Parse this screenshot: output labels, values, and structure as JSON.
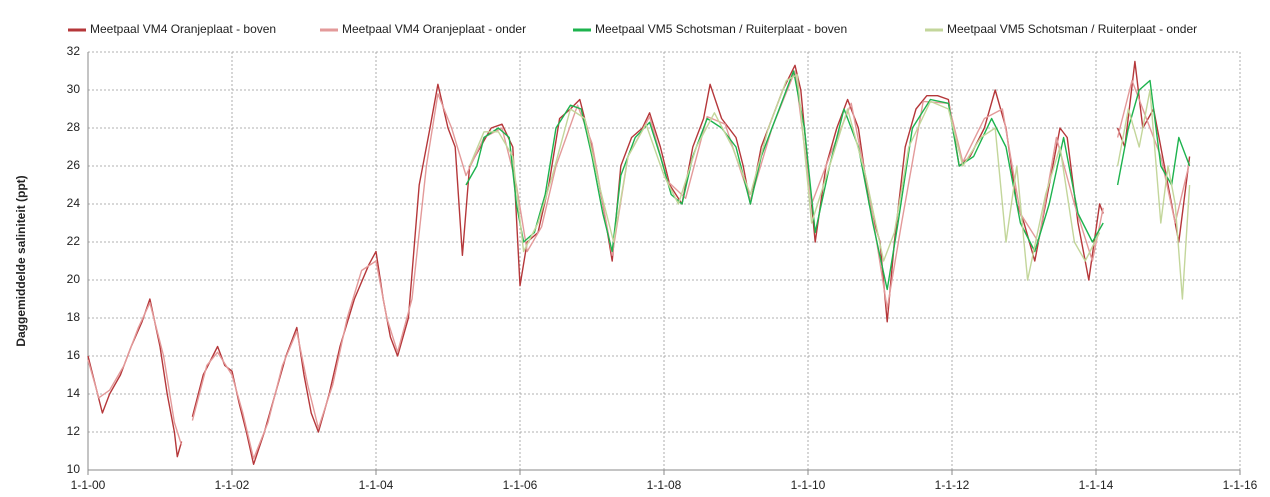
{
  "chart_data": {
    "type": "line",
    "y_label": "Daggemiddelde saliniteit (ppt)",
    "xlim": [
      2000,
      2016
    ],
    "xticks": [
      {
        "value": 2000,
        "label": "1-1-00"
      },
      {
        "value": 2002,
        "label": "1-1-02"
      },
      {
        "value": 2004,
        "label": "1-1-04"
      },
      {
        "value": 2006,
        "label": "1-1-06"
      },
      {
        "value": 2008,
        "label": "1-1-08"
      },
      {
        "value": 2010,
        "label": "1-1-10"
      },
      {
        "value": 2012,
        "label": "1-1-12"
      },
      {
        "value": 2014,
        "label": "1-1-14"
      },
      {
        "value": 2016,
        "label": "1-1-16"
      }
    ],
    "ylim": [
      10,
      32
    ],
    "yticks": [
      10,
      12,
      14,
      16,
      18,
      20,
      22,
      24,
      26,
      28,
      30,
      32
    ],
    "grid": true,
    "legend": "top",
    "series": [
      {
        "name": "Meetpaal VM4 Oranjeplaat - boven",
        "color": "#b5373a",
        "x": [
          2000.0,
          2000.1,
          2000.2,
          2000.3,
          2000.45,
          2000.6,
          2000.75,
          2000.86,
          2001.0,
          2001.1,
          2001.2,
          2001.24,
          2001.3,
          2001.33,
          2001.45,
          2001.6,
          2001.8,
          2001.9,
          2002.0,
          2002.1,
          2002.2,
          2002.3,
          2002.45,
          2002.6,
          2002.75,
          2002.9,
          2003.0,
          2003.1,
          2003.2,
          2003.35,
          2003.5,
          2003.7,
          2003.9,
          2004.0,
          2004.1,
          2004.2,
          2004.3,
          2004.45,
          2004.6,
          2004.75,
          2004.86,
          2005.0,
          2005.1,
          2005.2,
          2005.3,
          2005.45,
          2005.6,
          2005.75,
          2005.9,
          2006.0,
          2006.1,
          2006.25,
          2006.4,
          2006.55,
          2006.7,
          2006.83,
          2007.0,
          2007.15,
          2007.28,
          2007.4,
          2007.55,
          2007.7,
          2007.8,
          2007.95,
          2008.08,
          2008.25,
          2008.4,
          2008.55,
          2008.64,
          2008.8,
          2009.0,
          2009.1,
          2009.2,
          2009.35,
          2009.5,
          2009.65,
          2009.82,
          2009.9,
          2010.0,
          2010.1,
          2010.25,
          2010.4,
          2010.55,
          2010.7,
          2010.85,
          2011.0,
          2011.1,
          2011.2,
          2011.35,
          2011.5,
          2011.65,
          2011.8,
          2011.95,
          2012.1,
          2012.25,
          2012.45,
          2012.6,
          2012.75,
          2012.9,
          2013.0,
          2013.15,
          2013.3,
          2013.5,
          2013.6,
          2013.75,
          2013.9,
          2014.05,
          2014.1,
          2014.12,
          2014.3,
          2014.4,
          2014.54,
          2014.65,
          2014.8,
          2014.95,
          2015.05,
          2015.15,
          2015.3
        ],
        "values": [
          16,
          14.5,
          13,
          14,
          15,
          16.5,
          17.8,
          19,
          16.5,
          14,
          12,
          10.7,
          11.5,
          null,
          12.8,
          15,
          16.5,
          15.5,
          15.2,
          13.5,
          12,
          10.3,
          12,
          14,
          16,
          17.5,
          15,
          13,
          12,
          14,
          16.5,
          19,
          20.8,
          21.5,
          19,
          17,
          16,
          18,
          25,
          28,
          30.3,
          28,
          27,
          21.3,
          26,
          27,
          28,
          28.2,
          27,
          19.7,
          22,
          22.5,
          25,
          28.5,
          29,
          29.5,
          27,
          24,
          21,
          26,
          27.5,
          28,
          28.8,
          27,
          25,
          24,
          27,
          28.5,
          30.3,
          28.5,
          27.5,
          26,
          24,
          27,
          28.5,
          30,
          31.3,
          30,
          26,
          22,
          26,
          28,
          29.5,
          28,
          24,
          22,
          17.8,
          22,
          27,
          29,
          29.7,
          29.7,
          29.5,
          26,
          26.5,
          28,
          30,
          28,
          24,
          23,
          21,
          24,
          28,
          27.5,
          23,
          20,
          24,
          23.5,
          null,
          28,
          27,
          31.5,
          28,
          29,
          26,
          24,
          22,
          26.5
        ]
      },
      {
        "name": "Meetpaal VM4 Oranjeplaat - onder",
        "color": "#e39a9a",
        "x": [
          2000.0,
          2000.15,
          2000.3,
          2000.5,
          2000.7,
          2000.86,
          2001.05,
          2001.2,
          2001.3,
          2001.33,
          2001.45,
          2001.65,
          2001.8,
          2002.0,
          2002.15,
          2002.3,
          2002.5,
          2002.7,
          2002.9,
          2003.05,
          2003.2,
          2003.4,
          2003.6,
          2003.8,
          2004.0,
          2004.15,
          2004.3,
          2004.5,
          2004.7,
          2004.86,
          2005.05,
          2005.25,
          2005.5,
          2005.75,
          2005.95,
          2006.1,
          2006.3,
          2006.5,
          2006.8,
          2007.0,
          2007.28,
          2007.5,
          2007.8,
          2008.05,
          2008.3,
          2008.6,
          2008.85,
          2009.2,
          2009.5,
          2009.82,
          2010.05,
          2010.3,
          2010.6,
          2010.85,
          2011.1,
          2011.3,
          2011.6,
          2011.95,
          2012.15,
          2012.45,
          2012.7,
          2012.95,
          2013.2,
          2013.45,
          2013.7,
          2013.95,
          2014.1,
          2014.12,
          2014.3,
          2014.5,
          2014.7,
          2014.9,
          2015.1,
          2015.3
        ],
        "values": [
          15.8,
          13.8,
          14.2,
          15.5,
          17.5,
          18.8,
          16,
          12.5,
          11.3,
          null,
          12.6,
          15.5,
          16.2,
          15,
          13,
          10.6,
          12.5,
          15.5,
          17.3,
          14.5,
          12.2,
          14.5,
          18,
          20.5,
          21,
          18,
          16.2,
          19,
          26,
          29.8,
          28,
          25.5,
          27.5,
          28,
          25,
          21.5,
          22.8,
          26,
          29.2,
          27.2,
          21.3,
          26.5,
          28.6,
          25.2,
          24.3,
          28.6,
          28.2,
          24.2,
          28,
          31,
          24,
          26.5,
          29.3,
          24.5,
          18.5,
          23,
          29.4,
          29.3,
          26.2,
          28.5,
          29,
          23.5,
          22,
          27.5,
          24,
          21,
          23.8,
          null,
          27.5,
          30.5,
          28.5,
          26.5,
          23,
          26.2
        ]
      },
      {
        "name": "Meetpaal VM5 Schotsman / Ruiterplaat - boven",
        "color": "#1db34e",
        "x": [
          2005.25,
          2005.4,
          2005.5,
          2005.7,
          2005.85,
          2005.95,
          2006.05,
          2006.2,
          2006.35,
          2006.5,
          2006.7,
          2006.85,
          2007.0,
          2007.15,
          2007.28,
          2007.4,
          2007.6,
          2007.8,
          2007.95,
          2008.1,
          2008.25,
          2008.4,
          2008.6,
          2008.8,
          2009.0,
          2009.2,
          2009.35,
          2009.55,
          2009.8,
          2009.95,
          2010.1,
          2010.3,
          2010.5,
          2010.7,
          2010.9,
          2011.1,
          2011.25,
          2011.45,
          2011.7,
          2011.95,
          2012.1,
          2012.3,
          2012.55,
          2012.75,
          2012.95,
          2013.15,
          2013.35,
          2013.55,
          2013.75,
          2013.95,
          2014.1,
          2014.12,
          2014.3,
          2014.45,
          2014.6,
          2014.75,
          2014.9,
          2015.05,
          2015.15,
          2015.3
        ],
        "values": [
          25,
          26,
          27.5,
          28,
          27.5,
          24,
          22,
          22.5,
          24.5,
          28,
          29.2,
          29,
          26.5,
          23.5,
          21.5,
          25.5,
          27.5,
          28.3,
          26.5,
          24.5,
          24,
          26.5,
          28.5,
          28,
          27,
          24,
          26.5,
          28.5,
          31,
          28,
          22.5,
          26,
          29,
          27,
          23,
          19.5,
          23,
          28,
          29.5,
          29.3,
          26,
          26.5,
          28.5,
          27,
          23,
          21.5,
          24,
          27.5,
          23.5,
          22,
          23,
          null,
          25,
          28,
          30,
          30.5,
          26,
          25,
          27.5,
          26
        ]
      },
      {
        "name": "Meetpaal VM5 Schotsman / Ruiterplaat - onder",
        "color": "#c3d69b",
        "x": [
          2005.3,
          2005.5,
          2005.7,
          2005.9,
          2006.05,
          2006.25,
          2006.45,
          2006.7,
          2006.9,
          2007.1,
          2007.3,
          2007.5,
          2007.75,
          2008.0,
          2008.2,
          2008.45,
          2008.7,
          2008.95,
          2009.2,
          2009.45,
          2009.7,
          2009.85,
          2010.05,
          2010.3,
          2010.55,
          2010.8,
          2011.05,
          2011.2,
          2011.4,
          2011.7,
          2011.95,
          2012.15,
          2012.4,
          2012.6,
          2012.75,
          2012.9,
          2013.05,
          2013.3,
          2013.5,
          2013.7,
          2013.85,
          2014.05,
          2014.12,
          2014.3,
          2014.45,
          2014.6,
          2014.75,
          2014.9,
          2015.0,
          2015.1,
          2015.2,
          2015.3
        ],
        "values": [
          26,
          27.8,
          27.8,
          26.5,
          21.5,
          23,
          25.5,
          29,
          28.5,
          25,
          22,
          26.5,
          28.2,
          25.5,
          24,
          27,
          28.8,
          27,
          24.5,
          28,
          30.5,
          30.8,
          23,
          26,
          29,
          25.5,
          21,
          22.5,
          27,
          29.4,
          29,
          26,
          27.5,
          28,
          22,
          26,
          20,
          24.5,
          27,
          22,
          21,
          22.5,
          null,
          26,
          29,
          27,
          30,
          23,
          26,
          24,
          19,
          25
        ]
      }
    ]
  }
}
